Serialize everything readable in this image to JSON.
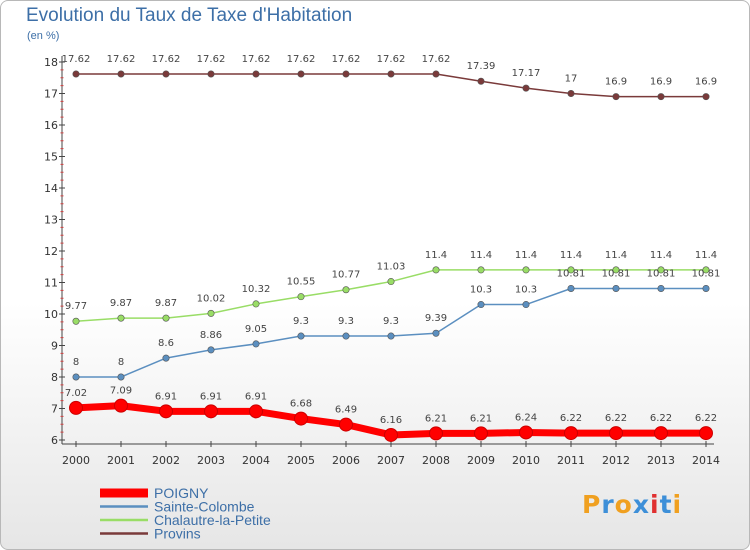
{
  "title": "Evolution du Taux de Taxe d'Habitation",
  "unit_label": "(en %)",
  "logo": {
    "text": "Proxiti",
    "letters": [
      "P",
      "r",
      "o",
      "x",
      "i",
      "t",
      "i"
    ],
    "colors": [
      "#f0a020",
      "#3d8fd8",
      "#f0a020",
      "#3d8fd8",
      "#e03030",
      "#3d8fd8",
      "#f0a020"
    ]
  },
  "chart_data": {
    "type": "line",
    "title": "Evolution du Taux de Taxe d'Habitation",
    "ylabel": "(en %)",
    "xlabel": "",
    "x": [
      "2000",
      "2001",
      "2002",
      "2003",
      "2004",
      "2005",
      "2006",
      "2007",
      "2008",
      "2009",
      "2010",
      "2011",
      "2012",
      "2013",
      "2014"
    ],
    "ylim": [
      6,
      18
    ],
    "yticks": [
      "6",
      "7",
      "8",
      "9",
      "10",
      "11",
      "12",
      "13",
      "14",
      "15",
      "16",
      "17",
      "18"
    ],
    "grid": false,
    "legend_position": "bottom-left",
    "series": [
      {
        "name": "POIGNY",
        "color": "#ff0000",
        "values": [
          7.02,
          7.09,
          6.91,
          6.91,
          6.91,
          6.68,
          6.49,
          6.16,
          6.21,
          6.21,
          6.24,
          6.22,
          6.22,
          6.22,
          6.22
        ],
        "labels": [
          "7.02",
          "7.09",
          "6.91",
          "6.91",
          "6.91",
          "6.68",
          "6.49",
          "6.16",
          "6.21",
          "6.21",
          "6.24",
          "6.22",
          "6.22",
          "6.22",
          "6.22"
        ]
      },
      {
        "name": "Sainte-Colombe",
        "color": "#5b8fc0",
        "values": [
          8,
          8,
          8.6,
          8.86,
          9.05,
          9.3,
          9.3,
          9.3,
          9.39,
          10.3,
          10.3,
          10.81,
          10.81,
          10.81,
          10.81
        ],
        "labels": [
          "8",
          "8",
          "8.6",
          "8.86",
          "9.05",
          "9.3",
          "9.3",
          "9.3",
          "9.39",
          "10.3",
          "10.3",
          "10.81",
          "10.81",
          "10.81",
          "10.81"
        ]
      },
      {
        "name": "Chalautre-la-Petite",
        "color": "#99dd66",
        "values": [
          9.77,
          9.87,
          9.87,
          10.02,
          10.32,
          10.55,
          10.77,
          11.03,
          11.4,
          11.4,
          11.4,
          11.4,
          11.4,
          11.4,
          11.4
        ],
        "labels": [
          "9.77",
          "9.87",
          "9.87",
          "10.02",
          "10.32",
          "10.55",
          "10.77",
          "11.03",
          "11.4",
          "11.4",
          "11.4",
          "11.4",
          "11.4",
          "11.4",
          "11.4"
        ]
      },
      {
        "name": "Provins",
        "color": "#7a3a3a",
        "values": [
          17.62,
          17.62,
          17.62,
          17.62,
          17.62,
          17.62,
          17.62,
          17.62,
          17.62,
          17.39,
          17.17,
          17,
          16.9,
          16.9,
          16.9
        ],
        "labels": [
          "17.62",
          "17.62",
          "17.62",
          "17.62",
          "17.62",
          "17.62",
          "17.62",
          "17.62",
          "17.62",
          "17.39",
          "17.17",
          "17",
          "16.9",
          "16.9",
          "16.9"
        ]
      }
    ]
  }
}
